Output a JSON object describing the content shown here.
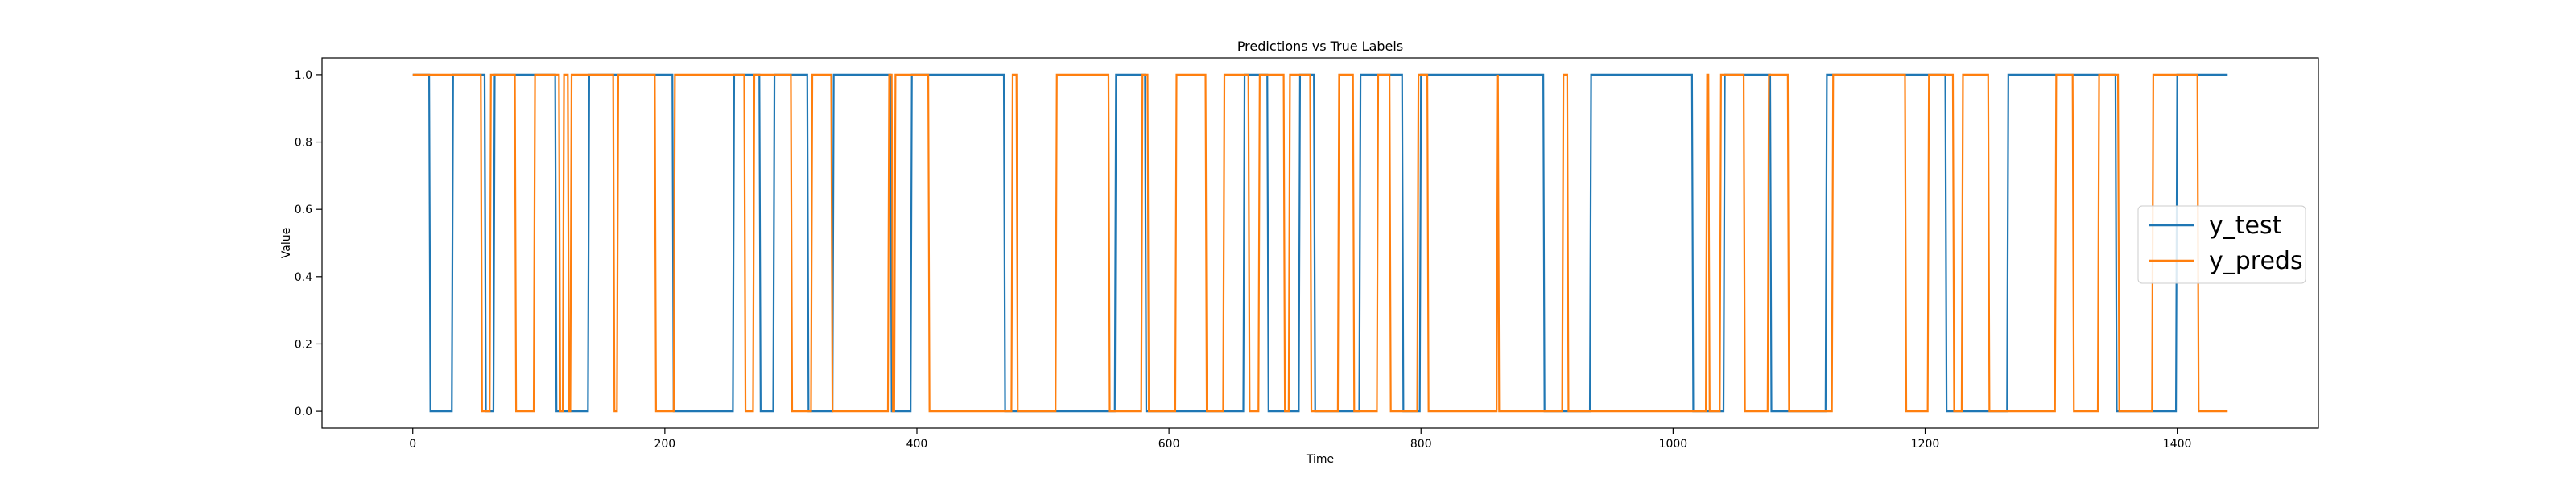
{
  "chart_data": {
    "type": "line",
    "title": "Predictions vs True Labels",
    "xlabel": "Time",
    "ylabel": "Value",
    "xlim": [
      -72,
      1512
    ],
    "ylim": [
      -0.05,
      1.05
    ],
    "xticks": [
      0,
      200,
      400,
      600,
      800,
      1000,
      1200,
      1400
    ],
    "yticks": [
      0.0,
      0.2,
      0.4,
      0.6,
      0.8,
      1.0
    ],
    "xtick_labels": [
      "0",
      "200",
      "400",
      "600",
      "800",
      "1000",
      "1200",
      "1400"
    ],
    "ytick_labels": [
      "0.0",
      "0.2",
      "0.4",
      "0.6",
      "0.8",
      "1.0"
    ],
    "grid": false,
    "legend_position": "center-right",
    "series": [
      {
        "name": "y_test",
        "color": "#1f77b4",
        "start_value": 1,
        "end_x": 1440,
        "transitions": [
          14,
          32,
          58,
          65,
          114,
          140,
          207,
          255,
          276,
          287,
          314,
          334,
          380,
          396,
          470,
          558,
          582,
          660,
          679,
          704,
          716,
          752,
          786,
          800,
          898,
          935,
          1016,
          1041,
          1078,
          1122,
          1217,
          1266,
          1352,
          1400
        ]
      },
      {
        "name": "y_preds",
        "color": "#ff7f0e",
        "start_value": 1,
        "end_x": 1440,
        "transitions": [
          55,
          62,
          82,
          97,
          117,
          120,
          124,
          126,
          160,
          163,
          193,
          208,
          264,
          271,
          301,
          317,
          333,
          378,
          381,
          383,
          410,
          476,
          480,
          511,
          553,
          579,
          584,
          606,
          630,
          644,
          664,
          672,
          692,
          696,
          713,
          735,
          747,
          766,
          776,
          798,
          806,
          861,
          862,
          913,
          917,
          1027,
          1029,
          1038,
          1057,
          1076,
          1092,
          1127,
          1185,
          1203,
          1223,
          1230,
          1251,
          1304,
          1318,
          1338,
          1354,
          1381,
          1417
        ]
      }
    ]
  }
}
